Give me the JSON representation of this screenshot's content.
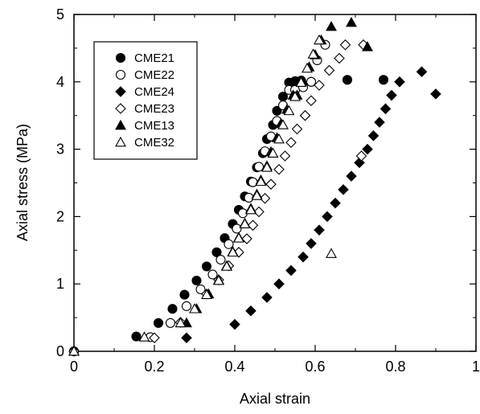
{
  "chart_data": {
    "type": "scatter",
    "title": "",
    "xlabel": "Axial strain",
    "ylabel": "Axial stress (MPa)",
    "xlim": [
      0,
      1
    ],
    "ylim": [
      0,
      5
    ],
    "xticks": [
      "0",
      "0.2",
      "0.4",
      "0.6",
      "0.8",
      "1"
    ],
    "yticks": [
      "0",
      "1",
      "2",
      "3",
      "4",
      "5"
    ],
    "grid": false,
    "legend": "top-left",
    "series": [
      {
        "name": "CME21",
        "marker": "circle-filled",
        "x": [
          0,
          0.155,
          0.21,
          0.245,
          0.275,
          0.305,
          0.33,
          0.355,
          0.375,
          0.395,
          0.41,
          0.425,
          0.44,
          0.455,
          0.47,
          0.48,
          0.495,
          0.505,
          0.52,
          0.535,
          0.55,
          0.565,
          0.59,
          0.68,
          0.77
        ],
        "y": [
          0,
          0.22,
          0.42,
          0.63,
          0.84,
          1.05,
          1.26,
          1.47,
          1.68,
          1.89,
          2.1,
          2.3,
          2.52,
          2.73,
          2.94,
          3.15,
          3.36,
          3.57,
          3.78,
          3.99,
          4.01,
          4.02,
          4.0,
          4.03,
          4.03
        ]
      },
      {
        "name": "CME22",
        "marker": "circle-open",
        "x": [
          0,
          0.19,
          0.24,
          0.28,
          0.315,
          0.345,
          0.365,
          0.385,
          0.405,
          0.42,
          0.435,
          0.445,
          0.46,
          0.475,
          0.49,
          0.505,
          0.52,
          0.535,
          0.55,
          0.57,
          0.59,
          0.605,
          0.625
        ],
        "y": [
          0,
          0.21,
          0.42,
          0.67,
          0.92,
          1.14,
          1.36,
          1.59,
          1.82,
          2.05,
          2.28,
          2.51,
          2.74,
          2.97,
          3.19,
          3.42,
          3.65,
          3.88,
          3.88,
          3.92,
          4.0,
          4.32,
          4.55
        ]
      },
      {
        "name": "CME24",
        "marker": "diamond-filled",
        "x": [
          0.28,
          0.4,
          0.44,
          0.48,
          0.51,
          0.54,
          0.57,
          0.59,
          0.61,
          0.63,
          0.65,
          0.67,
          0.69,
          0.71,
          0.73,
          0.745,
          0.76,
          0.775,
          0.79,
          0.81,
          0.865,
          0.9
        ],
        "y": [
          0.2,
          0.4,
          0.6,
          0.8,
          1.0,
          1.2,
          1.4,
          1.6,
          1.8,
          2.0,
          2.2,
          2.4,
          2.6,
          2.8,
          3.0,
          3.2,
          3.4,
          3.6,
          3.8,
          4.0,
          4.15,
          3.82
        ]
      },
      {
        "name": "CME23",
        "marker": "diamond-open",
        "x": [
          0,
          0.2,
          0.265,
          0.33,
          0.36,
          0.385,
          0.41,
          0.43,
          0.445,
          0.46,
          0.475,
          0.49,
          0.51,
          0.525,
          0.54,
          0.555,
          0.575,
          0.59,
          0.61,
          0.635,
          0.66,
          0.675,
          0.72,
          0.715
        ],
        "y": [
          0,
          0.2,
          0.43,
          0.85,
          1.06,
          1.27,
          1.47,
          1.67,
          1.87,
          2.07,
          2.27,
          2.48,
          2.7,
          2.9,
          3.1,
          3.3,
          3.5,
          3.72,
          3.95,
          4.17,
          4.35,
          4.55,
          4.55,
          2.9
        ]
      },
      {
        "name": "CME13",
        "marker": "triangle-filled",
        "x": [
          0,
          0.28,
          0.305,
          0.335,
          0.36,
          0.38,
          0.395,
          0.41,
          0.425,
          0.44,
          0.455,
          0.465,
          0.48,
          0.49,
          0.505,
          0.515,
          0.53,
          0.545,
          0.555,
          0.57,
          0.585,
          0.6,
          0.615,
          0.64,
          0.69,
          0.73
        ],
        "y": [
          0,
          0.42,
          0.63,
          0.85,
          1.06,
          1.27,
          1.48,
          1.69,
          1.9,
          2.12,
          2.33,
          2.54,
          2.75,
          2.96,
          3.17,
          3.38,
          3.59,
          3.8,
          3.8,
          4.01,
          4.22,
          4.4,
          4.62,
          4.82,
          4.88,
          4.52
        ]
      },
      {
        "name": "CME32",
        "marker": "triangle-open",
        "x": [
          0,
          0.175,
          0.265,
          0.3,
          0.33,
          0.36,
          0.38,
          0.395,
          0.41,
          0.425,
          0.44,
          0.455,
          0.465,
          0.48,
          0.495,
          0.51,
          0.52,
          0.535,
          0.55,
          0.565,
          0.58,
          0.595,
          0.61,
          0.64
        ],
        "y": [
          0,
          0.21,
          0.42,
          0.63,
          0.84,
          1.05,
          1.26,
          1.47,
          1.68,
          1.89,
          2.1,
          2.31,
          2.52,
          2.73,
          2.94,
          3.15,
          3.36,
          3.57,
          3.78,
          3.99,
          4.2,
          4.41,
          4.62,
          1.45
        ]
      }
    ]
  }
}
